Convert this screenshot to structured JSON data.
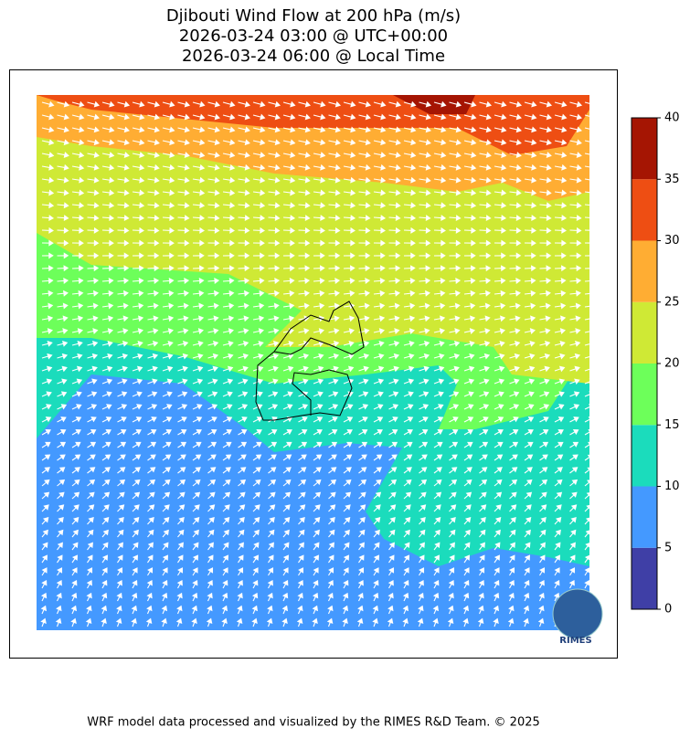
{
  "title": [
    "Djibouti Wind Flow at 200 hPa (m/s)",
    "2026-03-24 03:00 @ UTC+00:00",
    "2026-03-24 06:00 @ Local Time"
  ],
  "colorbar": {
    "ylim": [
      0,
      40
    ],
    "yticks": [
      0,
      5,
      10,
      15,
      20,
      25,
      30,
      35,
      40
    ],
    "colors": [
      "#3f3fa6",
      "#4499ff",
      "#1bdcbc",
      "#6dff5a",
      "#cfe935",
      "#ffad33",
      "#ee4e13",
      "#a51503"
    ]
  },
  "logo": "RIMES",
  "footer": "WRF model data processed and visualized by the RIMES R&D Team. © 2025"
}
